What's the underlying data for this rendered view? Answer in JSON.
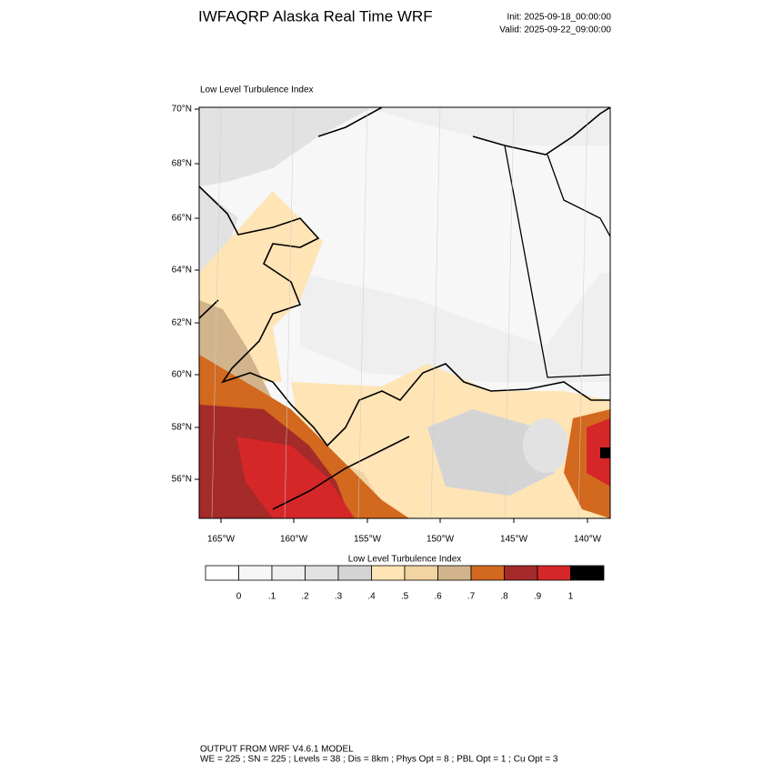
{
  "header": {
    "title": "IWFAQRP Alaska Real Time WRF",
    "init": "Init: 2025-09-18_00:00:00",
    "valid": "Valid: 2025-09-22_09:00:00"
  },
  "map": {
    "title": "Low Level Turbulence Index",
    "lat_labels": [
      "70°N",
      "68°N",
      "66°N",
      "64°N",
      "62°N",
      "60°N",
      "58°N",
      "56°N"
    ],
    "lon_labels": [
      "165°W",
      "160°W",
      "155°W",
      "150°W",
      "145°W",
      "140°W"
    ]
  },
  "colorbar": {
    "title": "Low Level Turbulence Index",
    "colors": [
      "#ffffff",
      "#f7f7f7",
      "#efefef",
      "#e2e2e2",
      "#d4d4d4",
      "#ffe4b5",
      "#f2d3a2",
      "#d2b48c",
      "#d2691e",
      "#a52a2a",
      "#d62728",
      "#000000"
    ],
    "labels": [
      "0",
      ".1",
      ".2",
      ".3",
      ".4",
      ".5",
      ".6",
      ".7",
      ".8",
      ".9",
      "1"
    ]
  },
  "footer": {
    "line1": "OUTPUT FROM WRF V4.6.1 MODEL",
    "line2": "WE = 225 ; SN = 225 ; Levels = 38 ; Dis = 8km ; Phys Opt = 8 ; PBL Opt = 1 ; Cu Opt = 3"
  }
}
